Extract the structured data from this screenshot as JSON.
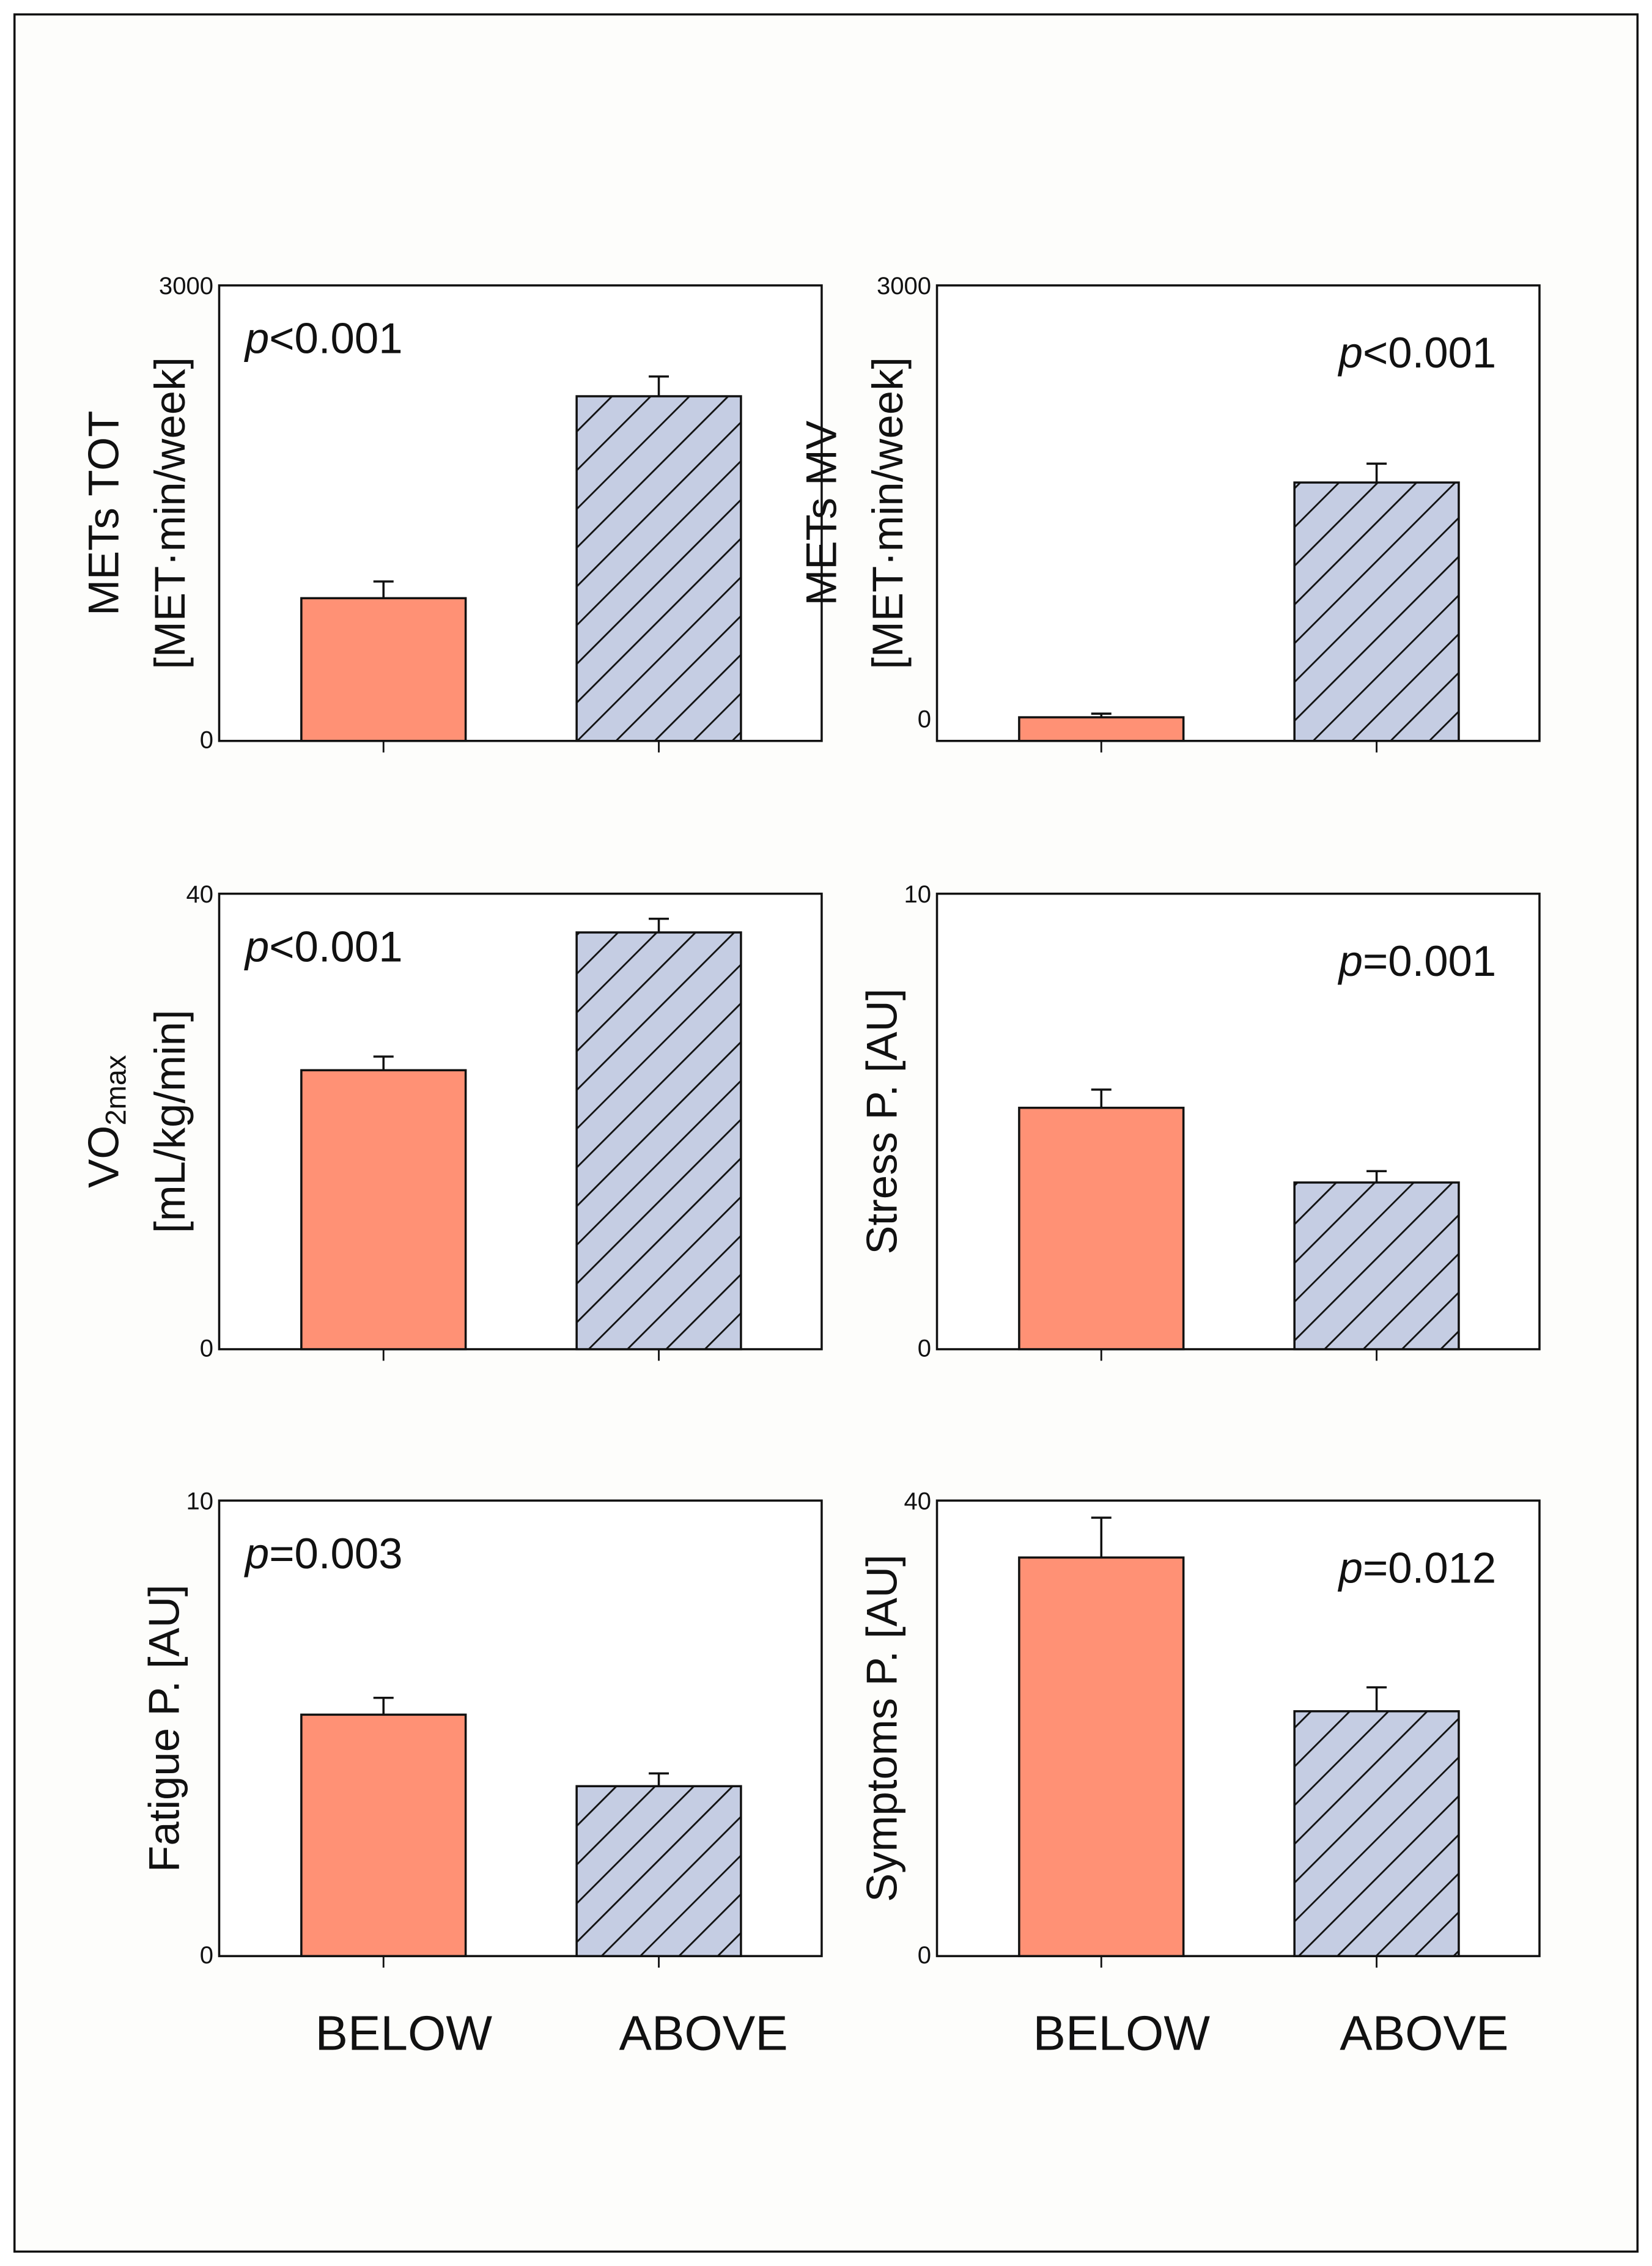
{
  "colors": {
    "below": "#ff9175",
    "above": "#c5cde3",
    "frame": "#111111",
    "background": "#fdfdfb"
  },
  "x_category_labels": [
    "BELOW",
    "ABOVE"
  ],
  "chart_data": [
    {
      "type": "bar",
      "ylabel_main": "METs TOT",
      "ylabel_sub": "",
      "ylabel_unit": "[MET·min/week]",
      "ylim": [
        0,
        3000
      ],
      "ytick_labels": [
        "0",
        "3000"
      ],
      "yticks": [
        0,
        3000
      ],
      "categories": [
        "BELOW",
        "ABOVE"
      ],
      "values": [
        940,
        2270
      ],
      "errors": [
        110,
        130
      ],
      "p_italic": "p",
      "p_text": "<0.001",
      "p_pos": "left"
    },
    {
      "type": "bar",
      "ylabel_main": "METs MV",
      "ylabel_sub": "",
      "ylabel_unit": "[MET·min/week]",
      "ylim": [
        -143,
        3000
      ],
      "ytick_labels": [
        "0",
        "3000"
      ],
      "yticks": [
        0,
        3000
      ],
      "categories": [
        "BELOW",
        "ABOVE"
      ],
      "values": [
        20,
        1640
      ],
      "errors": [
        25,
        130
      ],
      "p_italic": "p",
      "p_text": "<0.001",
      "p_pos": "right"
    },
    {
      "type": "bar",
      "ylabel_main": "VO",
      "ylabel_sub": "2max",
      "ylabel_unit": "[mL/kg/min]",
      "ylim": [
        0,
        40
      ],
      "ytick_labels": [
        "0",
        "40"
      ],
      "yticks": [
        0,
        40
      ],
      "categories": [
        "BELOW",
        "ABOVE"
      ],
      "values": [
        24.5,
        36.6
      ],
      "errors": [
        1.2,
        1.2
      ],
      "p_italic": "p",
      "p_text": "<0.001",
      "p_pos": "left"
    },
    {
      "type": "bar",
      "ylabel_main": "Stress P. [AU]",
      "ylabel_sub": "",
      "ylabel_unit": "",
      "ylim": [
        0,
        10
      ],
      "ytick_labels": [
        "0",
        "10"
      ],
      "yticks": [
        0,
        10
      ],
      "categories": [
        "BELOW",
        "ABOVE"
      ],
      "values": [
        5.3,
        3.66
      ],
      "errors": [
        0.4,
        0.25
      ],
      "p_italic": "p",
      "p_text": "=0.001",
      "p_pos": "right"
    },
    {
      "type": "bar",
      "ylabel_main": "Fatigue P. [AU]",
      "ylabel_sub": "",
      "ylabel_unit": "",
      "ylim": [
        0,
        10
      ],
      "ytick_labels": [
        "0",
        "10"
      ],
      "yticks": [
        0,
        10
      ],
      "categories": [
        "BELOW",
        "ABOVE"
      ],
      "values": [
        5.3,
        3.73
      ],
      "errors": [
        0.37,
        0.28
      ],
      "p_italic": "p",
      "p_text": "=0.003",
      "p_pos": "left"
    },
    {
      "type": "bar",
      "ylabel_main": "Symptoms P. [AU]",
      "ylabel_sub": "",
      "ylabel_unit": "",
      "ylim": [
        0,
        40
      ],
      "ytick_labels": [
        "0",
        "40"
      ],
      "yticks": [
        0,
        40
      ],
      "categories": [
        "BELOW",
        "ABOVE"
      ],
      "values": [
        35.0,
        21.5
      ],
      "errors": [
        3.5,
        2.1
      ],
      "p_italic": "p",
      "p_text": "=0.012",
      "p_pos": "right"
    }
  ]
}
